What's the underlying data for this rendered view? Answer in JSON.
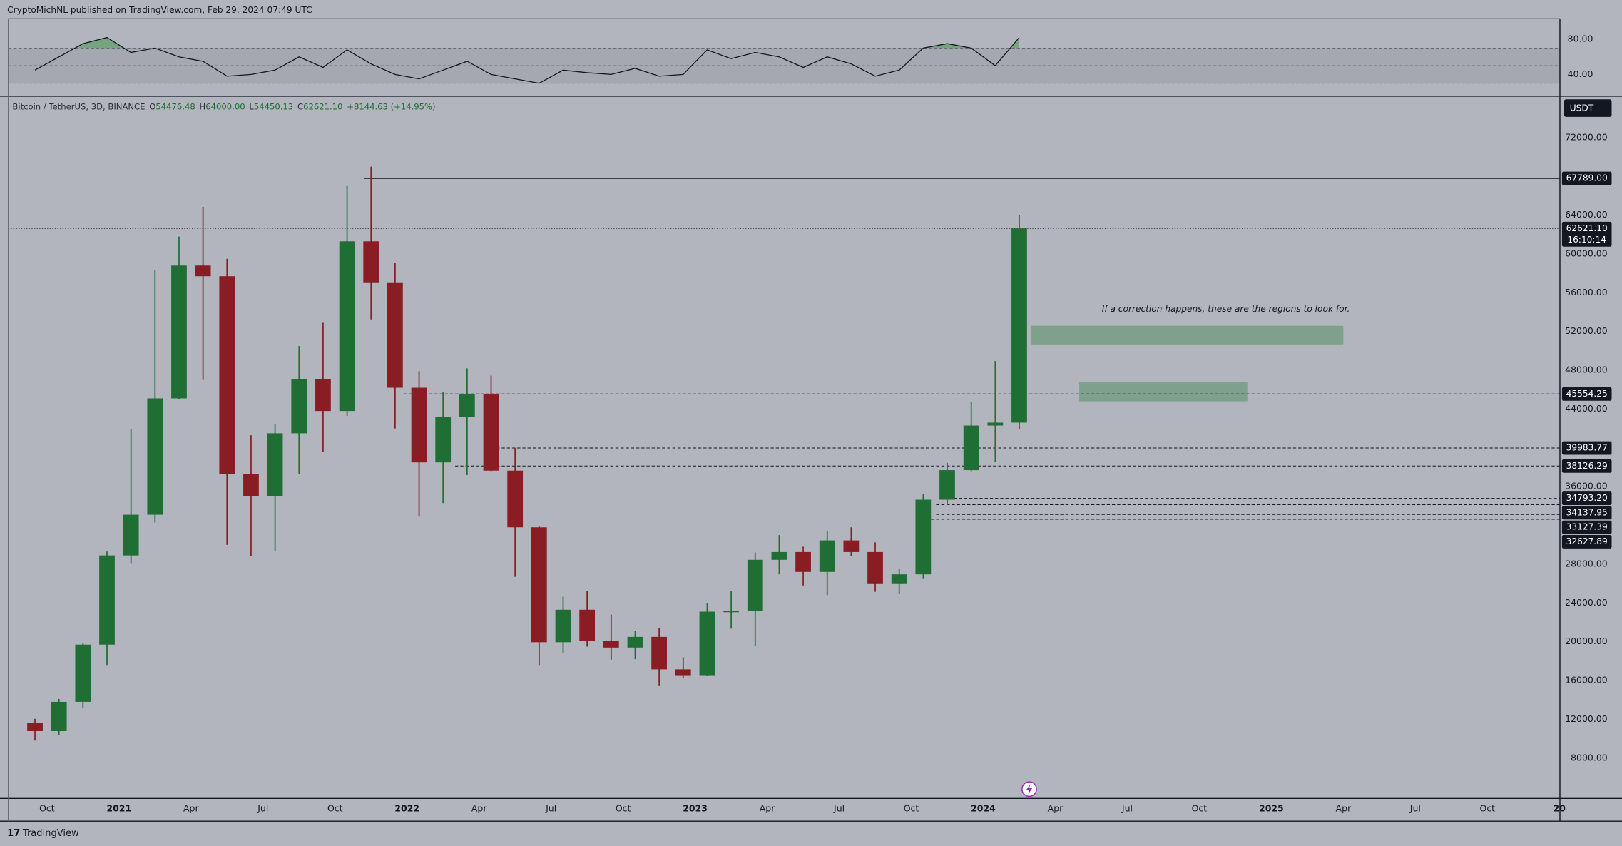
{
  "header": "CryptoMichNL published on TradingView.com, Feb 29, 2024 07:49 UTC",
  "footer": "TradingView",
  "chart_data": [
    {
      "type": "candlestick",
      "symbol": "Bitcoin / TetherUS, 3D, BINANCE",
      "legend_values": [
        {
          "label": "O",
          "value": "54476.48"
        },
        {
          "label": "H",
          "value": "64000.00"
        },
        {
          "label": "L",
          "value": "54450.13"
        },
        {
          "label": "C",
          "value": "62621.10"
        }
      ],
      "change": "+8144.63 (+14.95%)",
      "currency": "USDT",
      "x": [
        "2020-09",
        "2020-10",
        "2020-11",
        "2020-12",
        "2021-01",
        "2021-02",
        "2021-03",
        "2021-04",
        "2021-05",
        "2021-06",
        "2021-07",
        "2021-08",
        "2021-09",
        "2021-10",
        "2021-11",
        "2021-12",
        "2022-01",
        "2022-02",
        "2022-03",
        "2022-04",
        "2022-05",
        "2022-06",
        "2022-07",
        "2022-08",
        "2022-09",
        "2022-10",
        "2022-11",
        "2022-12",
        "2023-01",
        "2023-02",
        "2023-03",
        "2023-04",
        "2023-05",
        "2023-06",
        "2023-07",
        "2023-08",
        "2023-09",
        "2023-10",
        "2023-11",
        "2023-12",
        "2024-01",
        "2024-02"
      ],
      "open": [
        11650,
        10780,
        13800,
        19700,
        28900,
        33100,
        45100,
        58800,
        57700,
        37300,
        35000,
        41500,
        47100,
        43800,
        61300,
        57000,
        46200,
        38500,
        43200,
        45500,
        37650,
        31800,
        19950,
        23300,
        20050,
        19400,
        20500,
        17150,
        16550,
        23100,
        23150,
        28450,
        29250,
        27200,
        30450,
        29250,
        25950,
        26950,
        34650,
        37700,
        42300,
        42600
      ],
      "high": [
        12050,
        14100,
        19900,
        29300,
        41900,
        58350,
        61800,
        64850,
        59500,
        41300,
        42400,
        50500,
        52900,
        67000,
        69000,
        59100,
        47900,
        45800,
        48200,
        47450,
        40000,
        31950,
        24650,
        25200,
        22800,
        21100,
        21450,
        18400,
        23950,
        25250,
        29200,
        31000,
        29800,
        31400,
        31800,
        30250,
        27500,
        35200,
        38450,
        44700,
        48950,
        64000
      ],
      "low": [
        9800,
        10400,
        13200,
        17600,
        28100,
        32300,
        45000,
        47000,
        30000,
        28800,
        29300,
        37300,
        39600,
        43300,
        53250,
        42000,
        32900,
        34300,
        37200,
        37600,
        26700,
        17600,
        18800,
        19500,
        18150,
        18200,
        15500,
        16250,
        16500,
        21350,
        19550,
        26950,
        25800,
        24800,
        28850,
        25150,
        24900,
        26550,
        34100,
        37600,
        38550,
        41900
      ],
      "close": [
        10780,
        13800,
        19700,
        28900,
        33100,
        45100,
        58800,
        57700,
        37300,
        35000,
        41500,
        47100,
        43800,
        61300,
        57000,
        46200,
        38500,
        43200,
        45500,
        37650,
        31800,
        19950,
        23300,
        20050,
        19400,
        20500,
        17150,
        16550,
        23100,
        23150,
        28450,
        29250,
        27200,
        30450,
        29250,
        25950,
        26950,
        34650,
        37700,
        42300,
        42600,
        62621.1
      ],
      "up_color": "#1f6e34",
      "down_color": "#8a1c24",
      "xlim": [
        "2020-08",
        "2026-01"
      ],
      "xticks": [
        {
          "value": "2020-10",
          "label": "Oct"
        },
        {
          "value": "2021-01",
          "label": "2021"
        },
        {
          "value": "2021-04",
          "label": "Apr"
        },
        {
          "value": "2021-07",
          "label": "Jul"
        },
        {
          "value": "2021-10",
          "label": "Oct"
        },
        {
          "value": "2022-01",
          "label": "2022"
        },
        {
          "value": "2022-04",
          "label": "Apr"
        },
        {
          "value": "2022-07",
          "label": "Jul"
        },
        {
          "value": "2022-10",
          "label": "Oct"
        },
        {
          "value": "2023-01",
          "label": "2023"
        },
        {
          "value": "2023-04",
          "label": "Apr"
        },
        {
          "value": "2023-07",
          "label": "Jul"
        },
        {
          "value": "2023-10",
          "label": "Oct"
        },
        {
          "value": "2024-01",
          "label": "2024"
        },
        {
          "value": "2024-04",
          "label": "Apr"
        },
        {
          "value": "2024-07",
          "label": "Jul"
        },
        {
          "value": "2024-10",
          "label": "Oct"
        },
        {
          "value": "2025-01",
          "label": "2025"
        },
        {
          "value": "2025-04",
          "label": "Apr"
        },
        {
          "value": "2025-07",
          "label": "Jul"
        },
        {
          "value": "2025-10",
          "label": "Oct"
        },
        {
          "value": "2026-01",
          "label": "20"
        }
      ],
      "ylim": [
        3840,
        76160
      ],
      "yticks": [
        {
          "value": 72000,
          "label": "72000.00"
        },
        {
          "value": 64000,
          "label": "64000.00"
        },
        {
          "value": 60000,
          "label": "60000.00"
        },
        {
          "value": 56000,
          "label": "56000.00"
        },
        {
          "value": 52000,
          "label": "52000.00"
        },
        {
          "value": 48000,
          "label": "48000.00"
        },
        {
          "value": 44000,
          "label": "44000.00"
        },
        {
          "value": 36000,
          "label": "36000.00"
        },
        {
          "value": 28000,
          "label": "28000.00"
        },
        {
          "value": 24000,
          "label": "24000.00"
        },
        {
          "value": 20000,
          "label": "20000.00"
        },
        {
          "value": 16000,
          "label": "16000.00"
        },
        {
          "value": 12000,
          "label": "12000.00"
        },
        {
          "value": 8000,
          "label": "8000.00"
        }
      ],
      "grid": false,
      "levels": {
        "values": [
          67789,
          45554.25,
          39983.77,
          38126.29,
          34793.2,
          34137.95,
          33127.39,
          32627.89
        ],
        "value_labels": [
          "67789.00",
          "45554.25",
          "39983.77",
          "38126.29",
          "34793.20",
          "34137.95",
          "33127.39",
          "32627.89"
        ],
        "styles": [
          "solid",
          "dashed",
          "dashed",
          "dashed",
          "dashed",
          "dashed",
          "dashed",
          "dashed"
        ]
      },
      "last_price": 62621.1,
      "last_price_label": "62621.10",
      "countdown": "16:10:14",
      "zones": [
        {
          "x": [
            "2024-03",
            "2025-04"
          ],
          "y": [
            50667,
            52587
          ]
        },
        {
          "x": [
            "2024-05",
            "2024-12"
          ],
          "y": [
            44800,
            46827
          ]
        }
      ],
      "zone_color": "#4c8c55",
      "annotation": "If a correction happens, these are the regions to look for."
    },
    {
      "type": "line",
      "x": [
        "2020-09",
        "2020-10",
        "2020-11",
        "2020-12",
        "2021-01",
        "2021-02",
        "2021-03",
        "2021-04",
        "2021-05",
        "2021-06",
        "2021-07",
        "2021-08",
        "2021-09",
        "2021-10",
        "2021-11",
        "2021-12",
        "2022-01",
        "2022-02",
        "2022-03",
        "2022-04",
        "2022-05",
        "2022-06",
        "2022-07",
        "2022-08",
        "2022-09",
        "2022-10",
        "2022-11",
        "2022-12",
        "2023-01",
        "2023-02",
        "2023-03",
        "2023-04",
        "2023-05",
        "2023-06",
        "2023-07",
        "2023-08",
        "2023-09",
        "2023-10",
        "2023-11",
        "2023-12",
        "2024-01",
        "2024-02"
      ],
      "values": [
        45,
        60,
        75,
        82,
        65,
        70,
        60,
        55,
        38,
        40,
        45,
        60,
        48,
        68,
        52,
        40,
        35,
        45,
        55,
        40,
        35,
        30,
        45,
        42,
        40,
        47,
        38,
        40,
        68,
        58,
        65,
        60,
        48,
        60,
        52,
        38,
        45,
        70,
        75,
        70,
        50,
        82
      ],
      "color": "#131722",
      "overbought_color": "#4c9a55",
      "bands": [
        70,
        50,
        30
      ],
      "ylim": [
        16.5,
        103.5
      ],
      "yticks": [
        {
          "value": 80,
          "label": "80.00"
        },
        {
          "value": 40,
          "label": "40.00"
        }
      ]
    }
  ]
}
